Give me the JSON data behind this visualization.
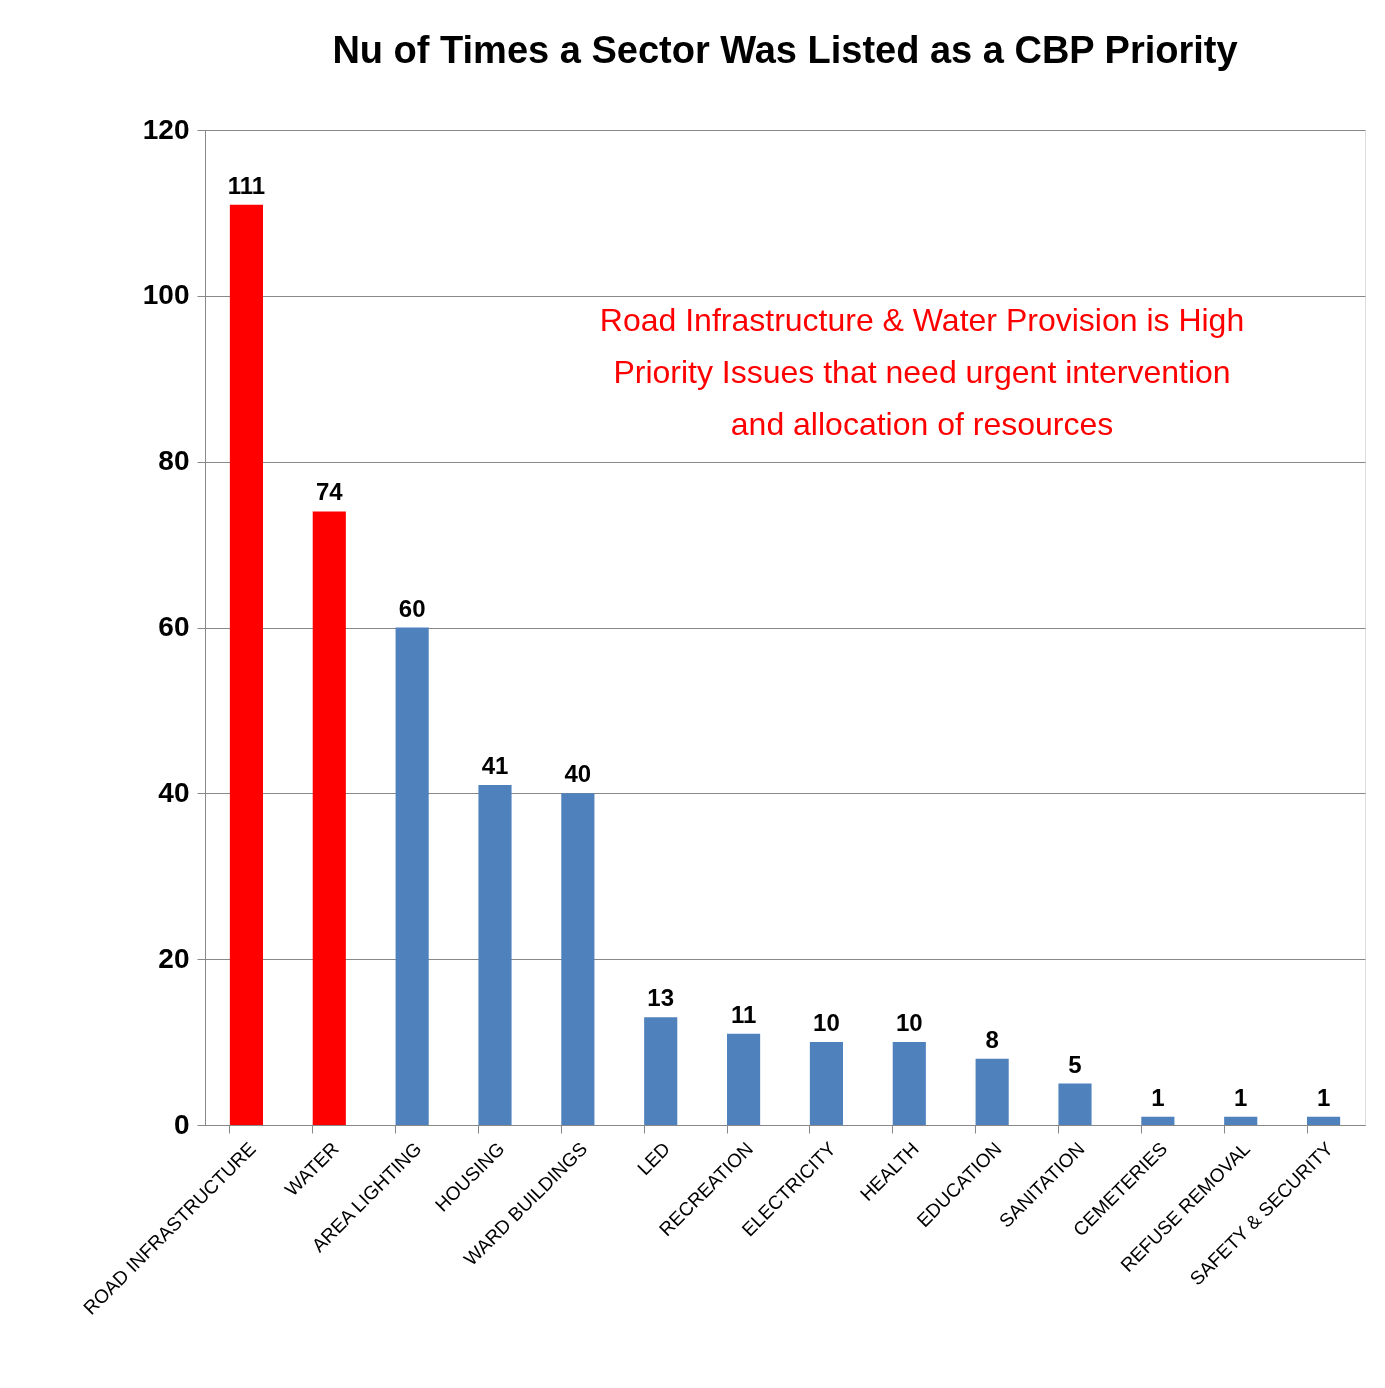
{
  "chart_data": {
    "type": "bar",
    "title": "Nu of Times a Sector Was Listed as a CBP Priority",
    "categories": [
      "ROAD INFRASTRUCTURE",
      "WATER",
      "AREA LIGHTING",
      "HOUSING",
      "WARD BUILDINGS",
      "LED",
      "RECREATION",
      "ELECTRICITY",
      "HEALTH",
      "EDUCATION",
      "SANITATION",
      "CEMETERIES",
      "REFUSE REMOVAL",
      "SAFETY & SECURITY"
    ],
    "values": [
      111,
      74,
      60,
      41,
      40,
      13,
      11,
      10,
      10,
      8,
      5,
      1,
      1,
      1
    ],
    "colors": [
      "#ff0000",
      "#ff0000",
      "#4f81bd",
      "#4f81bd",
      "#4f81bd",
      "#4f81bd",
      "#4f81bd",
      "#4f81bd",
      "#4f81bd",
      "#4f81bd",
      "#4f81bd",
      "#4f81bd",
      "#4f81bd",
      "#4f81bd"
    ],
    "ylim": [
      0,
      120
    ],
    "yticks": [
      0,
      20,
      40,
      60,
      80,
      100,
      120
    ],
    "grid": "y",
    "data_labels": true,
    "annotations": [
      "Road Infrastructure & Water Provision is High Priority Issues that need urgent intervention and allocation of resources"
    ]
  }
}
